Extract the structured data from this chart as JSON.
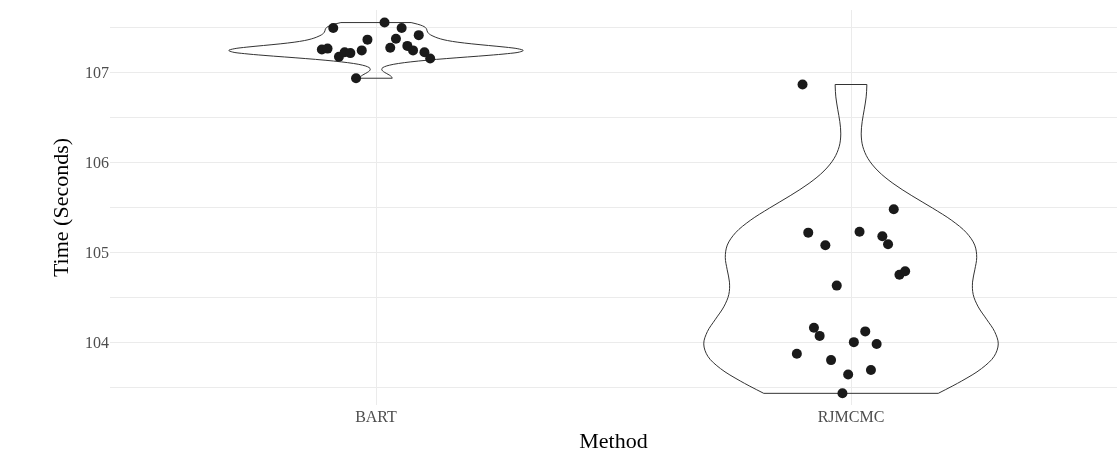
{
  "chart_data": {
    "type": "scatter",
    "xlabel": "Method",
    "ylabel": "Time (Seconds)",
    "categories": [
      "BART",
      "RJMCMC"
    ],
    "ylim": [
      103.3,
      107.7
    ],
    "yticks": [
      {
        "value": 103.5,
        "label": null
      },
      104,
      {
        "value": 104.5,
        "label": null
      },
      105,
      {
        "value": 105.5,
        "label": null
      },
      106,
      {
        "value": 106.5,
        "label": null
      },
      107,
      {
        "value": 107.5,
        "label": null
      }
    ],
    "grid": true,
    "marker": "circle",
    "series": [
      {
        "color": "#1a1a1a",
        "values": [
          107.26,
          103.87
        ]
      },
      {
        "color": "#1a1a1a",
        "values": [
          107.27,
          106.87
        ]
      },
      {
        "color": "#1a1a1a",
        "values": [
          107.5,
          105.22
        ]
      },
      {
        "color": "#1a1a1a",
        "values": [
          107.18,
          104.16
        ]
      },
      {
        "color": "#1a1a1a",
        "values": [
          107.23,
          104.07
        ]
      },
      {
        "color": "#1a1a1a",
        "values": [
          107.22,
          105.08
        ]
      },
      {
        "color": "#1a1a1a",
        "values": [
          106.94,
          103.8
        ]
      },
      {
        "color": "#1a1a1a",
        "values": [
          107.25,
          104.63
        ]
      },
      {
        "color": "#1a1a1a",
        "values": [
          107.37,
          103.43
        ]
      },
      {
        "color": "#1a1a1a",
        "values": [
          null,
          103.64
        ]
      },
      {
        "color": "#1a1a1a",
        "values": [
          null,
          104.0
        ]
      },
      {
        "color": "#1a1a1a",
        "values": [
          107.56,
          105.23
        ]
      },
      {
        "color": "#1a1a1a",
        "values": [
          107.28,
          104.12
        ]
      },
      {
        "color": "#1a1a1a",
        "values": [
          107.38,
          103.69
        ]
      },
      {
        "color": "#1a1a1a",
        "values": [
          107.5,
          103.98
        ]
      },
      {
        "color": "#1a1a1a",
        "values": [
          107.3,
          105.18
        ]
      },
      {
        "color": "#1a1a1a",
        "values": [
          107.25,
          105.09
        ]
      },
      {
        "color": "#1a1a1a",
        "values": [
          107.42,
          105.48
        ]
      },
      {
        "color": "#1a1a1a",
        "values": [
          107.23,
          104.75
        ]
      },
      {
        "color": "#1a1a1a",
        "values": [
          107.16,
          104.79
        ]
      }
    ]
  }
}
